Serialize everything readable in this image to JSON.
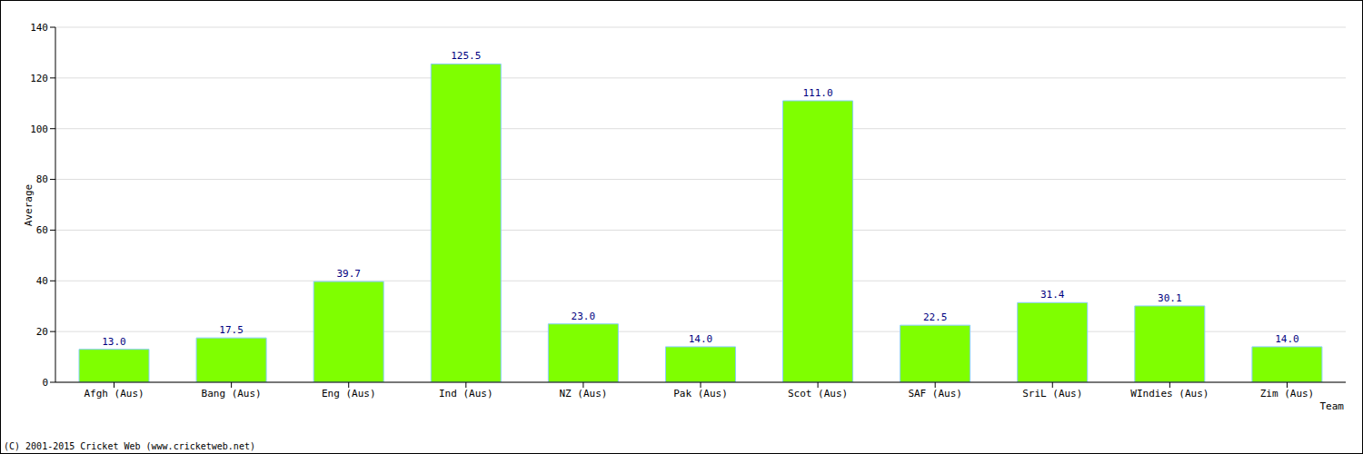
{
  "chart_data": {
    "type": "bar",
    "categories": [
      "Afgh (Aus)",
      "Bang (Aus)",
      "Eng (Aus)",
      "Ind (Aus)",
      "NZ (Aus)",
      "Pak (Aus)",
      "Scot (Aus)",
      "SAF (Aus)",
      "SriL (Aus)",
      "WIndies (Aus)",
      "Zim (Aus)"
    ],
    "values": [
      13.0,
      17.5,
      39.7,
      125.5,
      23.0,
      14.0,
      111.0,
      22.5,
      31.4,
      30.1,
      14.0
    ],
    "value_labels": [
      "13.0",
      "17.5",
      "39.7",
      "125.5",
      "23.0",
      "14.0",
      "111.0",
      "22.5",
      "31.4",
      "30.1",
      "14.0"
    ],
    "color": "#7fff00",
    "ylim": [
      0,
      140
    ],
    "yticks": [
      0,
      20,
      40,
      60,
      80,
      100,
      120,
      140
    ],
    "grid": true,
    "data_labels": true,
    "ylabel": "Average",
    "xlabel": "Team",
    "annotations": [
      "(C) 2001-2015 Cricket Web (www.cricketweb.net)"
    ]
  }
}
